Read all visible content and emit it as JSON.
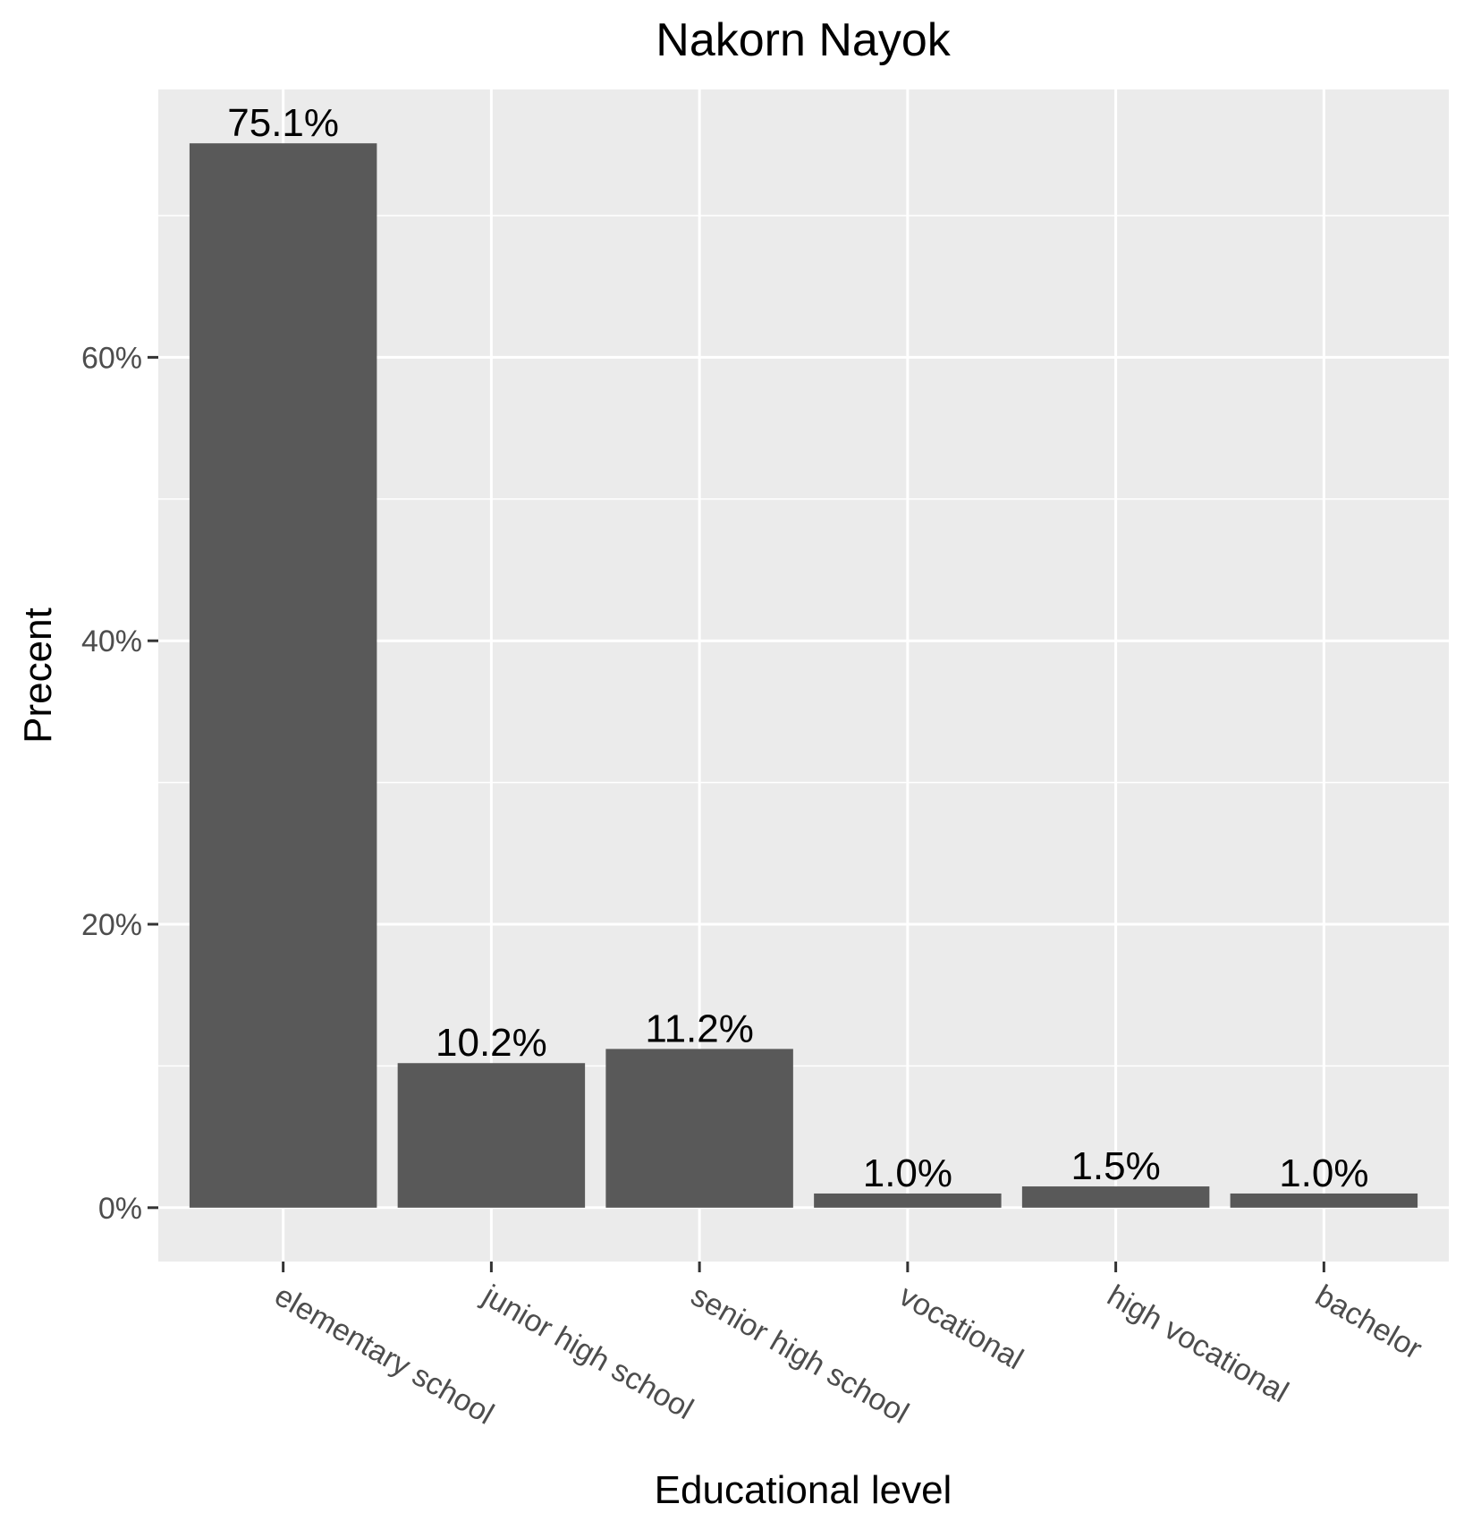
{
  "chart_data": {
    "type": "bar",
    "title": "Nakorn Nayok",
    "xlabel": "Educational level",
    "ylabel": "Precent",
    "categories": [
      "elementary school",
      "junior high school",
      "senior high school",
      "vocational",
      "high vocational",
      "bachelor"
    ],
    "values": [
      75.1,
      10.2,
      11.2,
      1.0,
      1.5,
      1.0
    ],
    "value_labels": [
      "75.1%",
      "10.2%",
      "11.2%",
      "1.0%",
      "1.5%",
      "1.0%"
    ],
    "y_ticks": [
      0,
      20,
      40,
      60
    ],
    "y_tick_labels": [
      "0%",
      "20%",
      "40%",
      "60%"
    ],
    "ylim": [
      -3.8,
      78.9
    ],
    "grid": true,
    "legend": "none",
    "colors": {
      "bar": "#595959",
      "panel": "#ebebeb",
      "grid": "#ffffff",
      "tick": "#333333"
    }
  }
}
